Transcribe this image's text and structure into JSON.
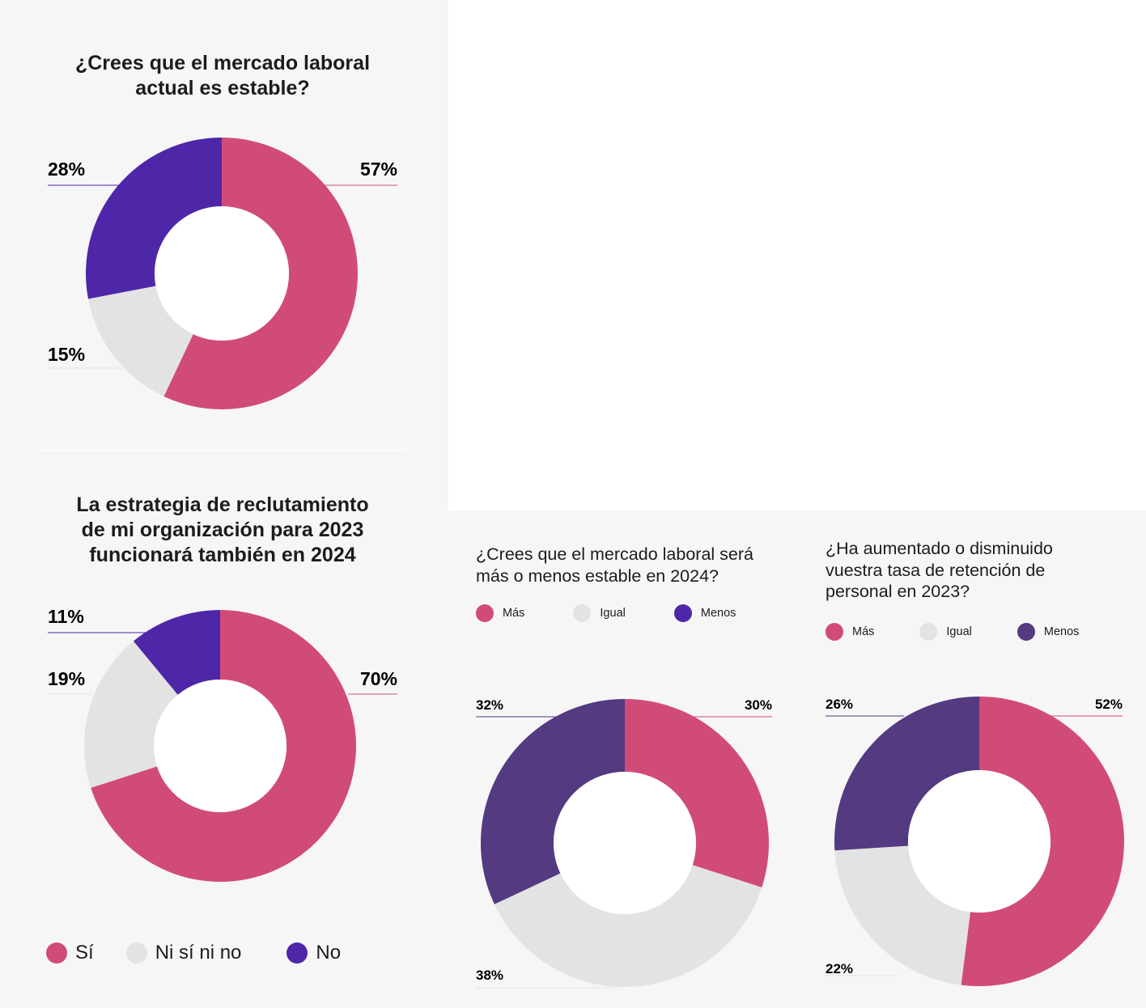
{
  "colors": {
    "pink": "#d14b79",
    "light_gray": "#e3e3e3",
    "purple": "#4e27a8",
    "dark_purple": "#533a81",
    "panel_bg": "#f6f6f6"
  },
  "chart_data": [
    {
      "type": "pie",
      "donut": true,
      "title": "¿Crees que el mercado laboral actual es estable?",
      "slices": [
        {
          "label": "Sí",
          "value": 57,
          "color": "#d14b79",
          "text": "57%"
        },
        {
          "label": "Ni sí ni no",
          "value": 15,
          "color": "#e3e3e3",
          "text": "15%"
        },
        {
          "label": "No",
          "value": 28,
          "color": "#4e27a8",
          "text": "28%"
        }
      ]
    },
    {
      "type": "pie",
      "donut": true,
      "title": "La estrategia de reclutamiento de mi organización para 2023 funcionará también en 2024",
      "slices": [
        {
          "label": "Sí",
          "value": 70,
          "color": "#d14b79",
          "text": "70%"
        },
        {
          "label": "Ni sí ni no",
          "value": 19,
          "color": "#e3e3e3",
          "text": "19%"
        },
        {
          "label": "No",
          "value": 11,
          "color": "#4e27a8",
          "text": "11%"
        }
      ],
      "legend": [
        "Sí",
        "Ni sí ni no",
        "No"
      ]
    },
    {
      "type": "pie",
      "donut": true,
      "title": "¿Crees que el mercado laboral será más o menos estable en 2024?",
      "slices": [
        {
          "label": "Más",
          "value": 30,
          "color": "#d14b79",
          "text": "30%"
        },
        {
          "label": "Igual",
          "value": 38,
          "color": "#e3e3e3",
          "text": "38%"
        },
        {
          "label": "Menos",
          "value": 32,
          "color": "#533a81",
          "text": "32%"
        }
      ],
      "legend": [
        "Más",
        "Igual",
        "Menos"
      ]
    },
    {
      "type": "pie",
      "donut": true,
      "title": "¿Ha aumentado o disminuido vuestra tasa de retención de personal en 2023?",
      "slices": [
        {
          "label": "Más",
          "value": 52,
          "color": "#d14b79",
          "text": "52%"
        },
        {
          "label": "Igual",
          "value": 22,
          "color": "#e3e3e3",
          "text": "22%"
        },
        {
          "label": "Menos",
          "value": 26,
          "color": "#533a81",
          "text": "26%"
        }
      ],
      "legend": [
        "Más",
        "Igual",
        "Menos"
      ]
    }
  ],
  "titles": {
    "c1_line1": "¿Crees que el mercado laboral",
    "c1_line2": "actual es estable?",
    "c2_line1": "La estrategia de reclutamiento",
    "c2_line2": "de mi organización para 2023",
    "c2_line3": "funcionará también en 2024",
    "c3_line1": "¿Crees que el mercado laboral será",
    "c3_line2": "más o menos estable en 2024?",
    "c4_line1": "¿Ha aumentado o disminuido",
    "c4_line2": "vuestra tasa de retención de",
    "c4_line3": "personal en 2023?"
  },
  "legends": {
    "c2": [
      "Sí",
      "Ni sí ni no",
      "No"
    ],
    "c3": [
      "Más",
      "Igual",
      "Menos"
    ],
    "c4": [
      "Más",
      "Igual",
      "Menos"
    ]
  }
}
